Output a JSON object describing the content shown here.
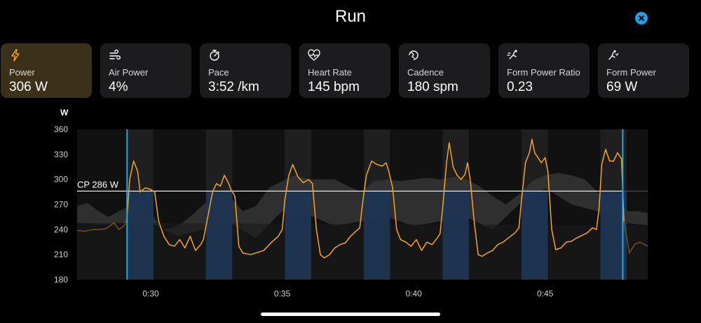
{
  "header": {
    "title": "Run"
  },
  "metrics": [
    {
      "label": "Power",
      "value": "306 W",
      "icon": "lightning-icon",
      "active": true
    },
    {
      "label": "Air Power",
      "value": "4%",
      "icon": "wind-icon",
      "active": false
    },
    {
      "label": "Pace",
      "value": "3:52 /km",
      "icon": "stopwatch-icon",
      "active": false
    },
    {
      "label": "Heart Rate",
      "value": "145 bpm",
      "icon": "heart-rate-icon",
      "active": false
    },
    {
      "label": "Cadence",
      "value": "180 spm",
      "icon": "cadence-icon",
      "active": false
    },
    {
      "label": "Form Power Ratio",
      "value": "0.23",
      "icon": "form-power-ratio-icon",
      "active": false
    },
    {
      "label": "Form Power",
      "value": "69 W",
      "icon": "form-power-icon",
      "active": false
    }
  ],
  "colors": {
    "accent": "#f5a623",
    "interval_fill": "#1f3552",
    "cursor": "#29a8e0",
    "close": "#1aa3e8",
    "active_card": "#3b3118"
  },
  "chart_data": {
    "type": "line",
    "ylabel": "W",
    "ylim": [
      180,
      360
    ],
    "yticks": [
      180,
      210,
      240,
      270,
      300,
      330,
      360
    ],
    "xlim": [
      27.2,
      48.9
    ],
    "xticks": [
      {
        "value": 30,
        "label": "0:30"
      },
      {
        "value": 35,
        "label": "0:35"
      },
      {
        "value": 40,
        "label": "0:40"
      },
      {
        "value": 45,
        "label": "0:45"
      }
    ],
    "reference_line": {
      "label": "CP 286 W",
      "value": 286
    },
    "selection": {
      "start": 29.1,
      "end": 47.95
    },
    "intervals": [
      {
        "start": 29.1,
        "end": 30.1
      },
      {
        "start": 32.1,
        "end": 33.1
      },
      {
        "start": 35.1,
        "end": 36.1
      },
      {
        "start": 38.1,
        "end": 39.1
      },
      {
        "start": 41.1,
        "end": 42.1
      },
      {
        "start": 44.1,
        "end": 45.1
      },
      {
        "start": 47.1,
        "end": 48.1
      }
    ],
    "series": [
      {
        "points": [
          [
            27.2,
            239
          ],
          [
            27.5,
            238
          ],
          [
            27.8,
            240
          ],
          [
            28.0,
            240
          ],
          [
            28.3,
            241
          ],
          [
            28.6,
            248
          ],
          [
            28.8,
            240
          ],
          [
            29.0,
            245
          ],
          [
            29.1,
            255
          ],
          [
            29.2,
            300
          ],
          [
            29.35,
            322
          ],
          [
            29.5,
            310
          ],
          [
            29.6,
            285
          ],
          [
            29.8,
            290
          ],
          [
            30.0,
            288
          ],
          [
            30.15,
            285
          ],
          [
            30.3,
            250
          ],
          [
            30.5,
            232
          ],
          [
            30.7,
            222
          ],
          [
            30.9,
            220
          ],
          [
            31.1,
            228
          ],
          [
            31.3,
            218
          ],
          [
            31.5,
            232
          ],
          [
            31.7,
            215
          ],
          [
            31.9,
            222
          ],
          [
            32.0,
            228
          ],
          [
            32.15,
            252
          ],
          [
            32.35,
            285
          ],
          [
            32.5,
            295
          ],
          [
            32.65,
            292
          ],
          [
            32.8,
            305
          ],
          [
            32.95,
            296
          ],
          [
            33.05,
            288
          ],
          [
            33.2,
            280
          ],
          [
            33.35,
            220
          ],
          [
            33.5,
            212
          ],
          [
            33.8,
            210
          ],
          [
            34.0,
            212
          ],
          [
            34.3,
            215
          ],
          [
            34.6,
            225
          ],
          [
            34.85,
            232
          ],
          [
            35.0,
            240
          ],
          [
            35.1,
            275
          ],
          [
            35.25,
            305
          ],
          [
            35.4,
            318
          ],
          [
            35.6,
            303
          ],
          [
            35.8,
            296
          ],
          [
            36.0,
            300
          ],
          [
            36.15,
            295
          ],
          [
            36.3,
            240
          ],
          [
            36.45,
            210
          ],
          [
            36.6,
            206
          ],
          [
            36.8,
            210
          ],
          [
            37.0,
            218
          ],
          [
            37.2,
            222
          ],
          [
            37.4,
            224
          ],
          [
            37.6,
            232
          ],
          [
            37.8,
            238
          ],
          [
            37.95,
            242
          ],
          [
            38.05,
            270
          ],
          [
            38.2,
            305
          ],
          [
            38.4,
            322
          ],
          [
            38.6,
            318
          ],
          [
            38.8,
            316
          ],
          [
            38.95,
            320
          ],
          [
            39.05,
            310
          ],
          [
            39.2,
            290
          ],
          [
            39.35,
            240
          ],
          [
            39.5,
            228
          ],
          [
            39.7,
            225
          ],
          [
            39.9,
            220
          ],
          [
            40.1,
            228
          ],
          [
            40.3,
            215
          ],
          [
            40.5,
            225
          ],
          [
            40.7,
            222
          ],
          [
            40.9,
            230
          ],
          [
            41.0,
            235
          ],
          [
            41.1,
            265
          ],
          [
            41.25,
            320
          ],
          [
            41.35,
            344
          ],
          [
            41.5,
            315
          ],
          [
            41.65,
            305
          ],
          [
            41.8,
            300
          ],
          [
            41.95,
            306
          ],
          [
            42.05,
            320
          ],
          [
            42.15,
            300
          ],
          [
            42.3,
            250
          ],
          [
            42.45,
            210
          ],
          [
            42.6,
            208
          ],
          [
            42.8,
            212
          ],
          [
            43.0,
            215
          ],
          [
            43.2,
            222
          ],
          [
            43.4,
            225
          ],
          [
            43.6,
            230
          ],
          [
            43.85,
            236
          ],
          [
            44.0,
            242
          ],
          [
            44.1,
            275
          ],
          [
            44.25,
            320
          ],
          [
            44.4,
            332
          ],
          [
            44.5,
            348
          ],
          [
            44.6,
            332
          ],
          [
            44.75,
            325
          ],
          [
            44.85,
            320
          ],
          [
            45.0,
            326
          ],
          [
            45.1,
            310
          ],
          [
            45.25,
            240
          ],
          [
            45.4,
            216
          ],
          [
            45.6,
            218
          ],
          [
            45.8,
            225
          ],
          [
            46.0,
            226
          ],
          [
            46.2,
            230
          ],
          [
            46.4,
            233
          ],
          [
            46.6,
            236
          ],
          [
            46.8,
            242
          ],
          [
            46.95,
            240
          ],
          [
            47.05,
            265
          ],
          [
            47.15,
            318
          ],
          [
            47.3,
            336
          ],
          [
            47.45,
            322
          ],
          [
            47.6,
            322
          ],
          [
            47.75,
            332
          ],
          [
            47.9,
            325
          ],
          [
            48.0,
            250
          ],
          [
            48.2,
            212
          ],
          [
            48.4,
            222
          ],
          [
            48.6,
            225
          ],
          [
            48.9,
            220
          ]
        ]
      }
    ],
    "background_series": {
      "points": [
        [
          27.2,
          268
        ],
        [
          27.6,
          272
        ],
        [
          28.0,
          262
        ],
        [
          28.4,
          255
        ],
        [
          28.8,
          262
        ],
        [
          29.2,
          268
        ],
        [
          29.6,
          280
        ],
        [
          30.0,
          262
        ],
        [
          30.4,
          240
        ],
        [
          30.8,
          242
        ],
        [
          31.2,
          248
        ],
        [
          31.6,
          258
        ],
        [
          32.0,
          270
        ],
        [
          32.5,
          282
        ],
        [
          33.0,
          280
        ],
        [
          33.5,
          262
        ],
        [
          34.0,
          268
        ],
        [
          34.5,
          290
        ],
        [
          35.0,
          298
        ],
        [
          35.5,
          305
        ],
        [
          36.0,
          300
        ],
        [
          36.5,
          300
        ],
        [
          37.0,
          300
        ],
        [
          37.5,
          292
        ],
        [
          38.0,
          285
        ],
        [
          38.5,
          298
        ],
        [
          39.0,
          300
        ],
        [
          39.5,
          298
        ],
        [
          40.0,
          300
        ],
        [
          40.5,
          302
        ],
        [
          41.0,
          300
        ],
        [
          41.5,
          303
        ],
        [
          42.0,
          300
        ],
        [
          42.5,
          292
        ],
        [
          43.0,
          280
        ],
        [
          43.5,
          270
        ],
        [
          44.0,
          282
        ],
        [
          44.5,
          298
        ],
        [
          45.0,
          305
        ],
        [
          45.5,
          308
        ],
        [
          46.0,
          305
        ],
        [
          46.5,
          300
        ],
        [
          47.0,
          285
        ],
        [
          47.5,
          270
        ],
        [
          48.0,
          262
        ],
        [
          48.5,
          262
        ],
        [
          48.9,
          260
        ]
      ],
      "lower": [
        [
          27.2,
          248
        ],
        [
          28.0,
          246
        ],
        [
          29.0,
          248
        ],
        [
          30.0,
          248
        ],
        [
          31.0,
          232
        ],
        [
          32.0,
          240
        ],
        [
          33.0,
          248
        ],
        [
          34.0,
          230
        ],
        [
          35.0,
          262
        ],
        [
          36.0,
          258
        ],
        [
          37.0,
          244
        ],
        [
          38.0,
          250
        ],
        [
          39.0,
          255
        ],
        [
          40.0,
          244
        ],
        [
          41.0,
          250
        ],
        [
          42.0,
          255
        ],
        [
          43.0,
          240
        ],
        [
          44.0,
          270
        ],
        [
          45.0,
          290
        ],
        [
          46.0,
          270
        ],
        [
          47.0,
          262
        ],
        [
          48.0,
          248
        ],
        [
          48.9,
          245
        ]
      ]
    }
  }
}
